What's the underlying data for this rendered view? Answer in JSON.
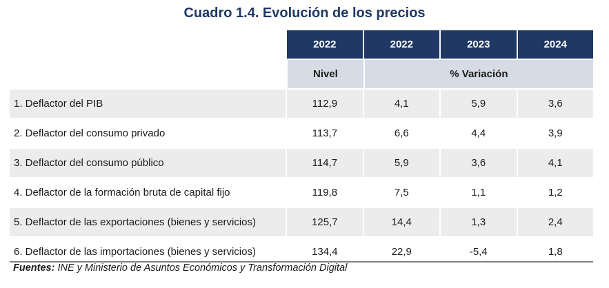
{
  "title": "Cuadro 1.4. Evolución de los precios",
  "headers": {
    "years": [
      "2022",
      "2022",
      "2023",
      "2024"
    ],
    "nivel": "Nivel",
    "variacion": "% Variación"
  },
  "rows": [
    {
      "label": "1. Deflactor del PIB",
      "values": [
        "112,9",
        "4,1",
        "5,9",
        "3,6"
      ]
    },
    {
      "label": "2. Deflactor del consumo privado",
      "values": [
        "113,7",
        "6,6",
        "4,4",
        "3,9"
      ]
    },
    {
      "label": "3. Deflactor del consumo público",
      "values": [
        "114,7",
        "5,9",
        "3,6",
        "4,1"
      ]
    },
    {
      "label": "4. Deflactor de la formación bruta de capital fijo",
      "values": [
        "119,8",
        "7,5",
        "1,1",
        "1,2"
      ]
    },
    {
      "label": "5. Deflactor de las exportaciones (bienes y servicios)",
      "values": [
        "125,7",
        "14,4",
        "1,3",
        "2,4"
      ]
    },
    {
      "label": "6. Deflactor de las importaciones (bienes y servicios)",
      "values": [
        "134,4",
        "22,9",
        "-5,4",
        "1,8"
      ]
    }
  ],
  "footer": {
    "prefix": "Fuentes:",
    "text": " INE y Ministerio de Asuntos Económicos y Transformación Digital"
  },
  "colors": {
    "header_dark": "#1f3864",
    "header_light": "#d6dce5",
    "row_shade": "#ececec"
  }
}
